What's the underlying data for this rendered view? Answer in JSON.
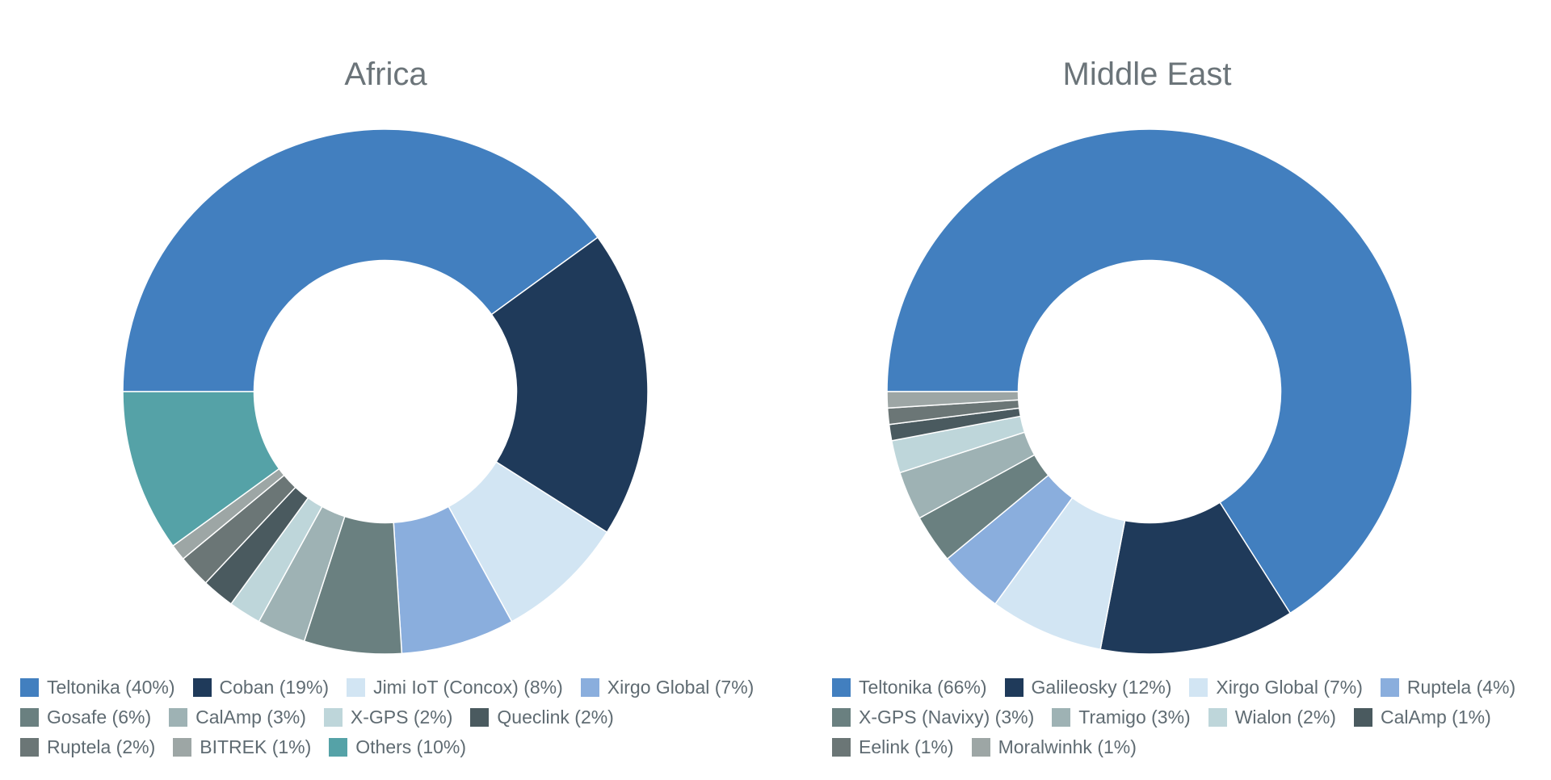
{
  "chart_data": [
    {
      "type": "pie",
      "title": "Africa",
      "hole": 0.5,
      "slices": [
        {
          "label": "Teltonika (40%)",
          "value": 40,
          "color": "#427fbf"
        },
        {
          "label": "Coban (19%)",
          "value": 19,
          "color": "#1f3a5a"
        },
        {
          "label": "Jimi IoT (Concox) (8%)",
          "value": 8,
          "color": "#d2e5f3"
        },
        {
          "label": "Xirgo Global (7%)",
          "value": 7,
          "color": "#8aaedd"
        },
        {
          "label": "Gosafe (6%)",
          "value": 6,
          "color": "#6a8080"
        },
        {
          "label": "CalAmp (3%)",
          "value": 3,
          "color": "#9eb2b4"
        },
        {
          "label": "X-GPS (2%)",
          "value": 2,
          "color": "#bed6da"
        },
        {
          "label": "Queclink (2%)",
          "value": 2,
          "color": "#4a5a5f"
        },
        {
          "label": "Ruptela (2%)",
          "value": 2,
          "color": "#6b7676"
        },
        {
          "label": "BITREK (1%)",
          "value": 1,
          "color": "#9da6a5"
        },
        {
          "label": "Others (10%)",
          "value": 10,
          "color": "#55a2a7"
        }
      ],
      "legend_rows": [
        [
          0,
          1,
          2,
          3
        ],
        [
          4,
          5,
          6,
          7
        ],
        [
          8,
          9,
          10
        ]
      ]
    },
    {
      "type": "pie",
      "title": "Middle East",
      "hole": 0.5,
      "slices": [
        {
          "label": "Teltonika (66%)",
          "value": 66,
          "color": "#427fbf"
        },
        {
          "label": "Galileosky (12%)",
          "value": 12,
          "color": "#1f3a5a"
        },
        {
          "label": "Xirgo Global (7%)",
          "value": 7,
          "color": "#d2e5f3"
        },
        {
          "label": "Ruptela (4%)",
          "value": 4,
          "color": "#8aaedd"
        },
        {
          "label": "X-GPS (Navixy) (3%)",
          "value": 3,
          "color": "#6a8080"
        },
        {
          "label": "Tramigo (3%)",
          "value": 3,
          "color": "#9eb2b4"
        },
        {
          "label": "Wialon (2%)",
          "value": 2,
          "color": "#bed6da"
        },
        {
          "label": "CalAmp (1%)",
          "value": 1,
          "color": "#4a5a5f"
        },
        {
          "label": "Eelink (1%)",
          "value": 1,
          "color": "#6b7676"
        },
        {
          "label": "Moralwinhk (1%)",
          "value": 1,
          "color": "#9da6a5"
        }
      ],
      "legend_rows": [
        [
          0,
          1,
          2,
          3
        ],
        [
          4,
          5,
          6,
          7
        ],
        [
          8,
          9
        ]
      ]
    }
  ]
}
